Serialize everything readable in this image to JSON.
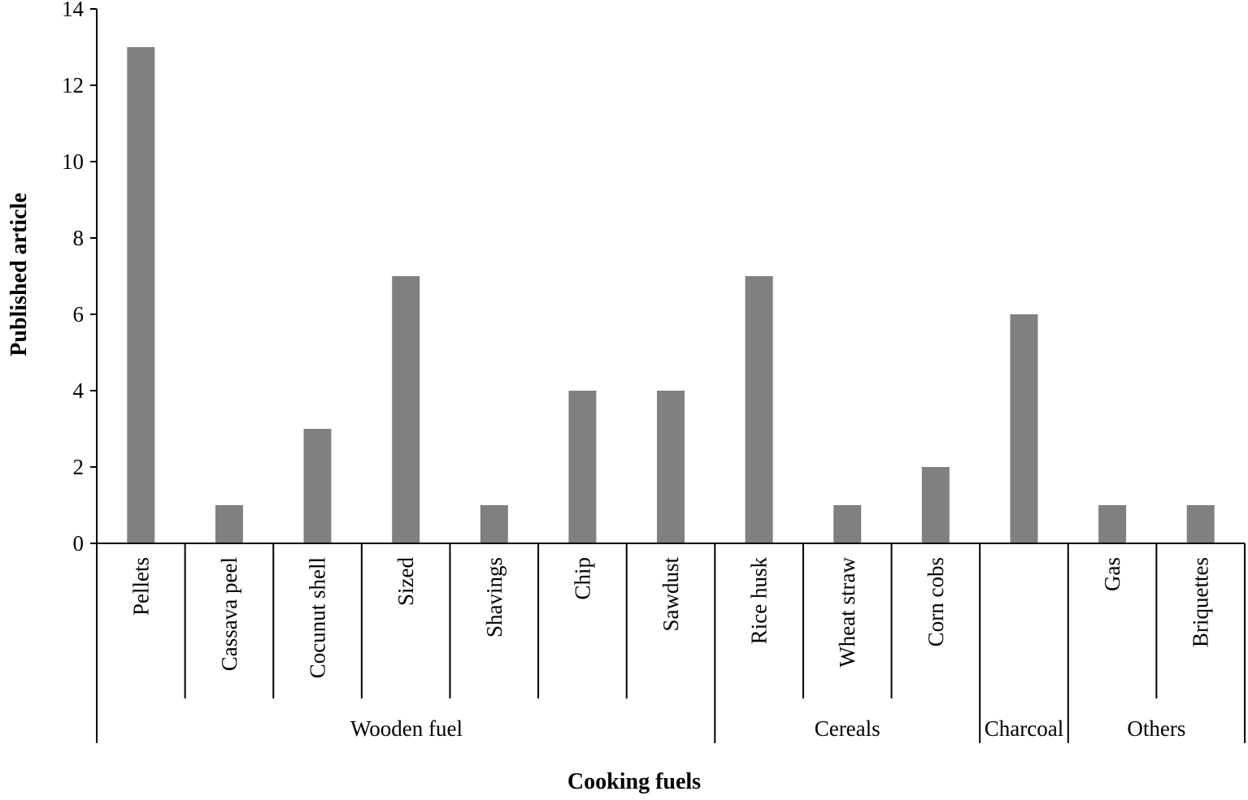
{
  "chart_data": {
    "type": "bar",
    "title": "",
    "xlabel": "Cooking fuels",
    "ylabel": "Published article",
    "ylim": [
      0,
      14
    ],
    "yticks": [
      0,
      2,
      4,
      6,
      8,
      10,
      12,
      14
    ],
    "grid": false,
    "legend": "none",
    "bar_color": "#808080",
    "categories": [
      "Pellets",
      "Cassava peel",
      "Cocunut shell",
      "Sized",
      "Shavings",
      "Chip",
      "Sawdust",
      "Rice husk",
      "Wheat straw",
      "Corn cobs",
      "",
      "Gas",
      "Briquettes"
    ],
    "values": [
      13,
      1,
      3,
      7,
      1,
      4,
      4,
      7,
      1,
      2,
      6,
      1,
      1
    ],
    "groups": [
      {
        "label": "Wooden fuel",
        "start": 0,
        "end": 6
      },
      {
        "label": "Cereals",
        "start": 7,
        "end": 9
      },
      {
        "label": "Charcoal",
        "start": 10,
        "end": 10
      },
      {
        "label": "Others",
        "start": 11,
        "end": 12
      }
    ]
  }
}
